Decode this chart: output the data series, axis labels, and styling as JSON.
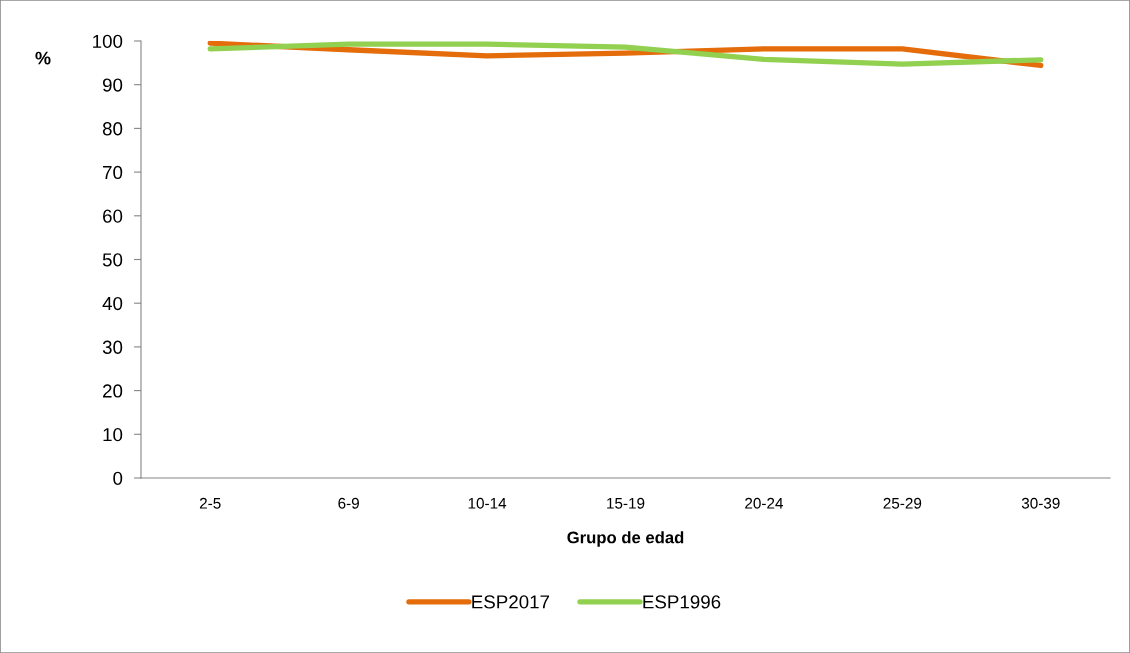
{
  "chart_data": {
    "type": "line",
    "xlabel": "Grupo de edad",
    "ylabel": "%",
    "categories": [
      "2-5",
      "6-9",
      "10-14",
      "15-19",
      "20-24",
      "25-29",
      "30-39"
    ],
    "series": [
      {
        "name": "ESP2017",
        "color": "#e46c0a",
        "values": [
          99.5,
          98.0,
          96.6,
          97.2,
          98.2,
          98.2,
          94.4
        ]
      },
      {
        "name": "ESP1996",
        "color": "#92d050",
        "values": [
          98.2,
          99.3,
          99.3,
          98.6,
          95.8,
          94.7,
          95.7
        ]
      }
    ],
    "ylim": [
      0,
      100
    ],
    "yticks": [
      0,
      10,
      20,
      30,
      40,
      50,
      60,
      70,
      80,
      90,
      100
    ],
    "grid": false,
    "legend": "bottom",
    "marker": "none",
    "line_style": "solid"
  }
}
